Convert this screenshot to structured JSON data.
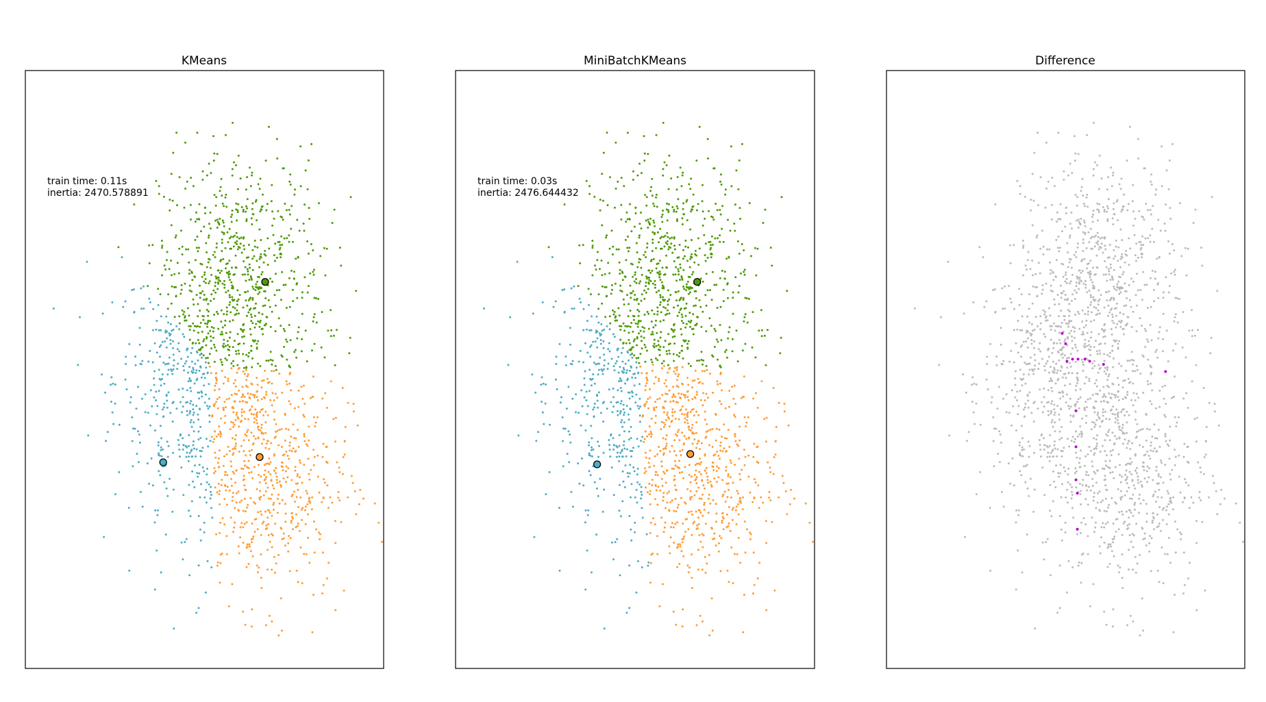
{
  "chart_data": [
    {
      "type": "scatter",
      "title": "KMeans",
      "annotation": {
        "train_time": "train time: 0.11s",
        "inertia": "inertia: 2470.578891"
      },
      "axes_visible": false,
      "grid": false,
      "xlim": [
        -2.6,
        2.6
      ],
      "ylim": [
        -2.8,
        3.0
      ],
      "series": [
        {
          "color": "#4EACC5",
          "values": "≈610 points around the center"
        },
        {
          "color": "#FF9C34",
          "values": "≈620 points around the center"
        },
        {
          "color": "#4E9A06",
          "values": "≈610 points around the center"
        }
      ],
      "centers": [
        {
          "color": "#4EACC5",
          "x": -0.6,
          "y": -0.8
        },
        {
          "color": "#FF9C34",
          "x": 0.8,
          "y": -0.75
        },
        {
          "color": "#4E9A06",
          "x": 0.88,
          "y": 0.95
        }
      ]
    },
    {
      "type": "scatter",
      "title": "MiniBatchKMeans",
      "annotation": {
        "train_time": "train time: 0.03s",
        "inertia": "inertia: 2476.644432"
      },
      "axes_visible": false,
      "grid": false,
      "xlim": [
        -2.6,
        2.6
      ],
      "ylim": [
        -2.8,
        3.0
      ],
      "series": [
        {
          "color": "#4EACC5"
        },
        {
          "color": "#FF9C34"
        },
        {
          "color": "#4E9A06"
        }
      ],
      "centers": [
        {
          "color": "#4EACC5",
          "x": -0.55,
          "y": -0.82
        },
        {
          "color": "#FF9C34",
          "x": 0.8,
          "y": -0.72
        },
        {
          "color": "#4E9A06",
          "x": 0.9,
          "y": 0.95
        }
      ]
    },
    {
      "type": "scatter",
      "title": "Difference",
      "axes_visible": false,
      "grid": false,
      "xlim": [
        -2.6,
        2.6
      ],
      "ylim": [
        -2.8,
        3.0
      ],
      "series": [
        {
          "color": "#bbbbbb",
          "values": "points assigned identically"
        },
        {
          "color": "#bb00cc",
          "values": "points assigned differently"
        }
      ],
      "different_points": [
        [
          -0.05,
          0.45
        ],
        [
          0.0,
          0.35
        ],
        [
          0.1,
          0.2
        ],
        [
          0.02,
          0.18
        ],
        [
          0.18,
          0.2
        ],
        [
          0.28,
          0.2
        ],
        [
          0.35,
          0.18
        ],
        [
          0.55,
          0.15
        ],
        [
          1.45,
          0.08
        ],
        [
          0.15,
          -0.3
        ],
        [
          0.15,
          -0.65
        ],
        [
          0.15,
          -0.97
        ],
        [
          0.17,
          -1.1
        ],
        [
          0.17,
          -1.45
        ]
      ]
    }
  ]
}
